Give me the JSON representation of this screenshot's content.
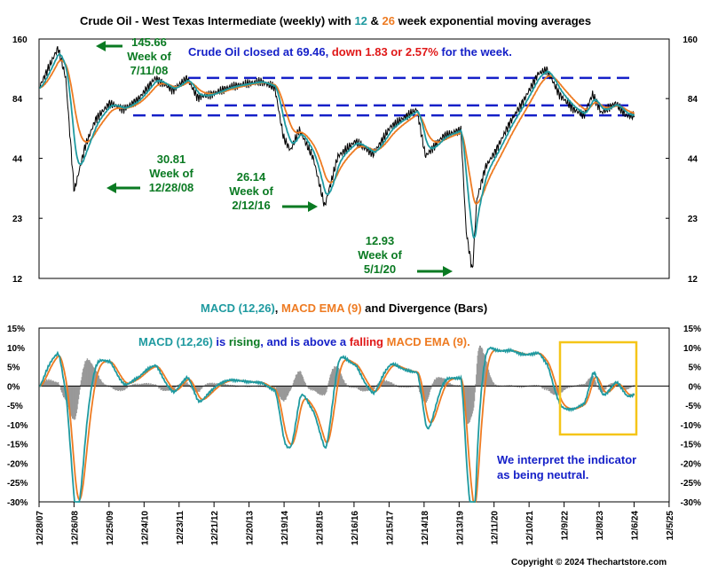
{
  "titles": {
    "top_prefix": "Crude Oil - West Texas Intermediate (weekly) with ",
    "top_12": "12",
    "top_amp": " & ",
    "top_26": "26",
    "top_suffix": " week exponential moving averages",
    "bottom_macd": "MACD (12,26)",
    "bottom_comma": ", ",
    "bottom_ema": "MACD EMA (9)",
    "bottom_suffix": " and Divergence (Bars)"
  },
  "notes": {
    "close_a": "Crude Oil closed at 69.46, ",
    "close_b": "down 1.83 or 2.57%",
    "close_c": " for the week.",
    "macd_a": "MACD (12,26)",
    "macd_b": " is ",
    "macd_c": "rising",
    "macd_d": ", and is above a ",
    "macd_e": "falling",
    "macd_f": " MACD EMA (9).",
    "neutral_1": "We interpret the indicator",
    "neutral_2": "as being neutral."
  },
  "annotations": {
    "peak_value": "145.66",
    "peak_week": "Week of",
    "peak_date": "7/11/08",
    "low2008_value": "30.81",
    "low2008_week": "Week of",
    "low2008_date": "12/28/08",
    "low2016_value": "26.14",
    "low2016_week": "Week of",
    "low2016_date": "2/12/16",
    "low2020_value": "12.93",
    "low2020_week": "Week of",
    "low2020_date": "5/1/20"
  },
  "copyright": "Copyright © 2024 Thechartstore.com",
  "colors": {
    "price": "#000000",
    "ema12": "#1f9aa0",
    "ema26": "#ee7b22",
    "macd": "#1f9aa0",
    "signal": "#ee7b22",
    "histogram": "#999999",
    "dashes": "#1520c8",
    "highlight_box": "#f5c518",
    "arrows": "#0a7a22"
  },
  "chart_data": [
    {
      "type": "line",
      "scale": "log",
      "x_ticks": [
        "12/28/07",
        "12/26/08",
        "12/25/09",
        "12/24/10",
        "12/23/11",
        "12/21/12",
        "12/20/13",
        "12/19/14",
        "12/18/15",
        "12/16/16",
        "12/15/17",
        "12/14/18",
        "12/13/19",
        "12/11/20",
        "12/10/21",
        "12/9/22",
        "12/8/23",
        "12/6/24",
        "12/5/25"
      ],
      "y_ticks": [
        12,
        23,
        44,
        84,
        160
      ],
      "ylim": [
        12,
        160
      ],
      "horizontal_levels": [
        105,
        78,
        70
      ],
      "series": [
        {
          "name": "Price",
          "x": [
            2008.0,
            2008.53,
            2008.75,
            2008.99,
            2009.3,
            2009.6,
            2010.0,
            2010.4,
            2010.8,
            2011.3,
            2011.8,
            2012.2,
            2012.5,
            2012.9,
            2013.4,
            2013.8,
            2014.3,
            2014.7,
            2014.95,
            2015.15,
            2015.4,
            2015.8,
            2016.12,
            2016.5,
            2017.0,
            2017.5,
            2018.0,
            2018.75,
            2018.99,
            2019.5,
            2020.0,
            2020.15,
            2020.33,
            2020.45,
            2020.7,
            2021.0,
            2021.4,
            2021.8,
            2022.2,
            2022.45,
            2022.8,
            2023.2,
            2023.5,
            2023.75,
            2024.0,
            2024.4,
            2024.7,
            2024.96
          ],
          "y": [
            95,
            145.66,
            105,
            30.81,
            50,
            67,
            80,
            75,
            83,
            105,
            92,
            105,
            85,
            88,
            95,
            98,
            101,
            95,
            55,
            48,
            60,
            44,
            26.14,
            45,
            53,
            46,
            62,
            75,
            45,
            56,
            60,
            20,
            12.93,
            28,
            40,
            48,
            65,
            83,
            110,
            115,
            88,
            75,
            70,
            88,
            72,
            80,
            70,
            69.46
          ]
        },
        {
          "name": "12-week EMA",
          "derived_from": "Price",
          "period": 12
        },
        {
          "name": "26-week EMA",
          "derived_from": "Price",
          "period": 26
        }
      ]
    },
    {
      "type": "line",
      "y_ticks": [
        "15%",
        "10%",
        "5%",
        "0%",
        "-5%",
        "-10%",
        "-15%",
        "-20%",
        "-25%",
        "-30%"
      ],
      "ylim": [
        -30,
        15
      ],
      "series": [
        {
          "name": "MACD (12,26)",
          "derived_from": "Price"
        },
        {
          "name": "MACD EMA (9)",
          "derived_from": "MACD (12,26)",
          "period": 9
        },
        {
          "name": "Divergence",
          "type": "bar",
          "derived_from": "MACD (12,26) - MACD EMA (9)"
        }
      ],
      "latest": {
        "macd": -3.2,
        "macd_direction": "rising",
        "signal": -3.5,
        "signal_direction": "falling"
      }
    }
  ]
}
